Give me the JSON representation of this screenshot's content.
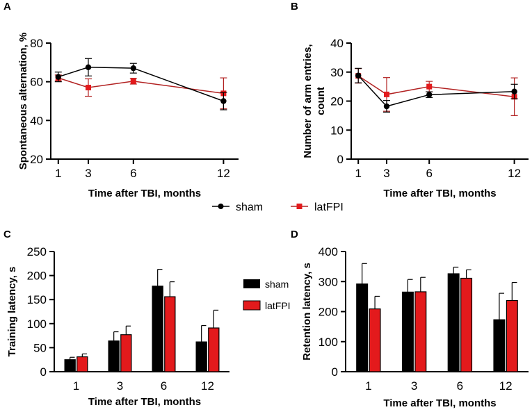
{
  "colors": {
    "sham": "#000000",
    "latFPI": "#e31a1c",
    "latFPI_line": "#b22222"
  },
  "legend": {
    "sham": "sham",
    "latFPI": "latFPI"
  },
  "chart_data": [
    {
      "panel_label": "A",
      "type": "line",
      "xlabel": "Time after TBI, months",
      "ylabel": "Spontaneous alternation, %",
      "x": [
        1,
        3,
        6,
        12
      ],
      "xlim": [
        0.5,
        13
      ],
      "ylim": [
        20,
        80
      ],
      "yticks": [
        20,
        40,
        60,
        80
      ],
      "series": [
        {
          "name": "sham",
          "values": [
            62.5,
            67.5,
            67,
            50
          ],
          "errors": [
            2.5,
            4.5,
            2.5,
            4.5
          ]
        },
        {
          "name": "latFPI",
          "values": [
            62,
            57,
            60.3,
            54
          ],
          "errors": [
            1.5,
            4.5,
            1.5,
            8
          ]
        }
      ]
    },
    {
      "panel_label": "B",
      "type": "line",
      "xlabel": "Time after TBI, months",
      "ylabel_lines": [
        "Number of arm entries,",
        "count"
      ],
      "x": [
        1,
        3,
        6,
        12
      ],
      "xlim": [
        0.5,
        13
      ],
      "ylim": [
        0,
        40
      ],
      "yticks": [
        0,
        10,
        20,
        30,
        40
      ],
      "series": [
        {
          "name": "sham",
          "values": [
            28.8,
            18.2,
            22.2,
            23.3
          ],
          "errors": [
            2.5,
            2,
            1,
            2.5
          ]
        },
        {
          "name": "latFPI",
          "values": [
            28.7,
            22.3,
            25,
            21.5
          ],
          "errors": [
            2.5,
            5.8,
            1.8,
            6.5
          ]
        }
      ]
    },
    {
      "panel_label": "C",
      "type": "bar",
      "xlabel": "Time after TBI, months",
      "ylabel": "Training latency, s",
      "categories": [
        "1",
        "3",
        "6",
        "12"
      ],
      "ylim": [
        0,
        250
      ],
      "yticks": [
        0,
        50,
        100,
        150,
        200,
        250
      ],
      "series": [
        {
          "name": "sham",
          "values": [
            25,
            64,
            178,
            62
          ],
          "errors": [
            5,
            19,
            35,
            34
          ]
        },
        {
          "name": "latFPI",
          "values": [
            31,
            77,
            156,
            91
          ],
          "errors": [
            6,
            18,
            31,
            37
          ]
        }
      ]
    },
    {
      "panel_label": "D",
      "type": "bar",
      "xlabel": "Time after TBI, months",
      "ylabel": "Retention latency, s",
      "categories": [
        "1",
        "3",
        "6",
        "12"
      ],
      "ylim": [
        0,
        400
      ],
      "yticks": [
        0,
        100,
        200,
        300,
        400
      ],
      "series": [
        {
          "name": "sham",
          "values": [
            292,
            265,
            326,
            173
          ],
          "errors": [
            68,
            42,
            22,
            88
          ]
        },
        {
          "name": "latFPI",
          "values": [
            209,
            266,
            311,
            237
          ],
          "errors": [
            42,
            48,
            28,
            60
          ]
        }
      ]
    }
  ]
}
